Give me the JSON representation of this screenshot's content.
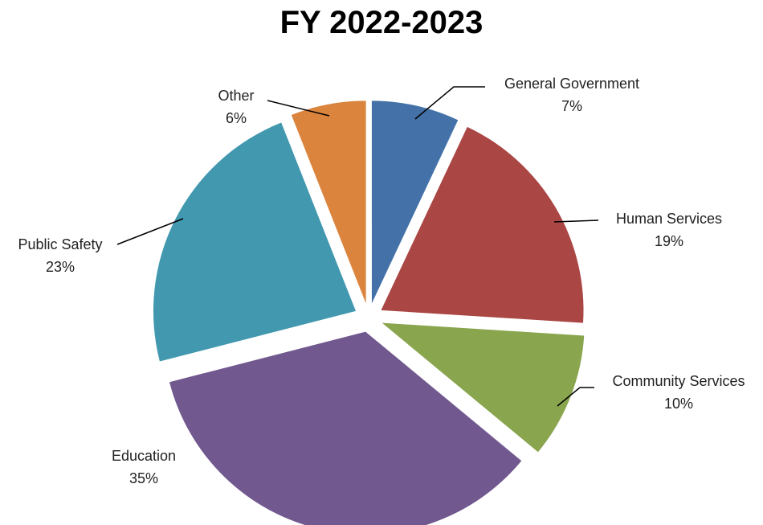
{
  "chart_data": {
    "type": "pie",
    "title": "FY 2022-2023",
    "slices": [
      {
        "label": "General Government",
        "value": 7,
        "value_label": "7%",
        "color": "#4472A8"
      },
      {
        "label": "Human Services",
        "value": 19,
        "value_label": "19%",
        "color": "#AA4644"
      },
      {
        "label": "Community Services",
        "value": 10,
        "value_label": "10%",
        "color": "#89A54E"
      },
      {
        "label": "Education",
        "value": 35,
        "value_label": "35%",
        "color": "#71588F"
      },
      {
        "label": "Public Safety",
        "value": 23,
        "value_label": "23%",
        "color": "#4198AF"
      },
      {
        "label": "Other",
        "value": 6,
        "value_label": "6%",
        "color": "#DB843D"
      }
    ],
    "exploded": true,
    "start_angle": "12 o'clock",
    "direction": "clockwise",
    "legend": "none"
  }
}
